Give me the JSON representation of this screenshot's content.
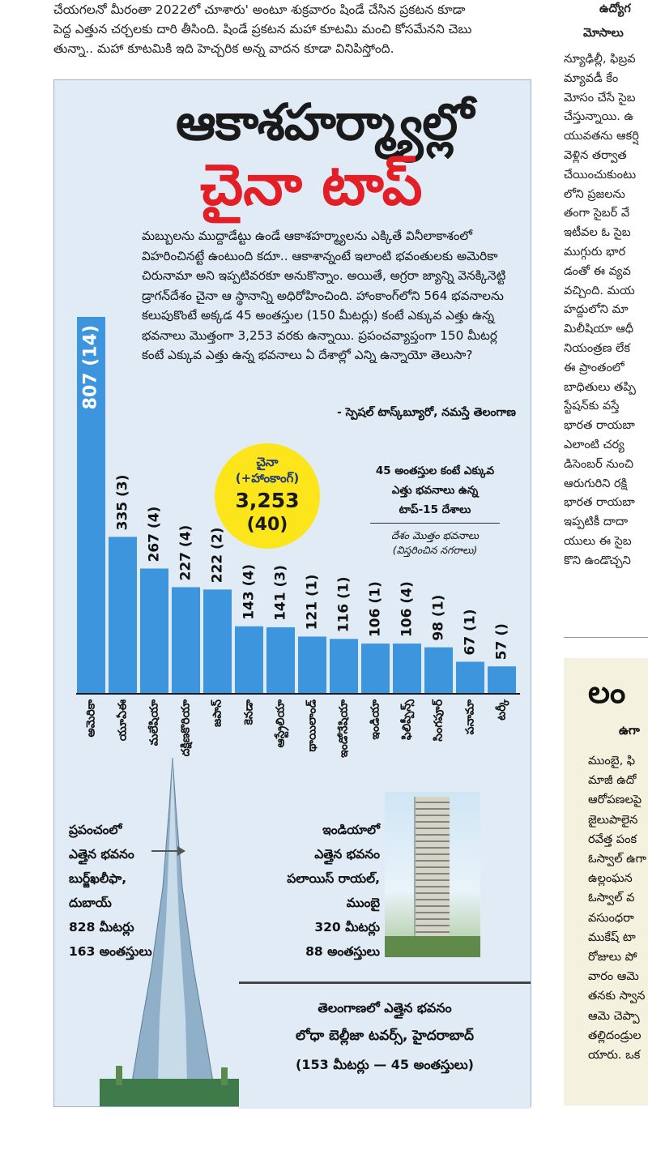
{
  "intro_lines": [
    "చేయగలనో మీరంతా 2022లో చూశారు' అంటూ శుక్రవారం షిండే చేసిన ప్రకటన కూడా",
    "పెద్ద ఎత్తున చర్చలకు దారి తీసింది. షిండే ప్రకటన మహా కూటమి మంచి కోసమేనని చెబు",
    "తున్నా.. మహా కూటమికి ఇది హెచ్చరిక అన్న వాదన కూడా వినిపిస్తోంది."
  ],
  "right_column": {
    "kicker": "ఉద్యోగ",
    "subhead": "మోసాలు",
    "lines": [
      "న్యూఢిల్లీ, ఫిబ్రవ",
      "మ్యావడీ కేం",
      "మోసం చేసే సైబ",
      "చేస్తున్నాయి. ఉ",
      "యువతను ఆకర్షి",
      "వెళ్లిన తర్వాత",
      "చేయించుకుంటు",
      "లోని ప్రజలను",
      "తంగా సైబర్ వే",
      "ఇటీవల ఓ సైబ",
      "ముగ్గురు భార",
      "డంతో ఈ వ్యవ",
      "వచ్చింది. మయ",
      "హద్దులోని మా",
      "మిలీషియా ఆధీ",
      "నియంత్రణ లేక",
      "ఈ ప్రాంతంలో",
      "బాధితులు తప్పి",
      "స్టేషన్‌కు వస్తే",
      "భారత రాయబా",
      "ఎలాంటి చర్య",
      "డిసెంబర్ నుంచి",
      "ఆరుగురిని రక్షి",
      "భారత రాయబా",
      "ఇప్పటికీ దాదా",
      "యులు ఈ సైబ",
      "కొని ఉండొచ్చని"
    ]
  },
  "box2": {
    "head": "లం",
    "subhead": "ఉగా",
    "lines": [
      "ముంబై, ఫి",
      "మాజీ ఉదో",
      "ఆరోపణలపై",
      "జైలుపాలైన",
      "రవేత్త పంక",
      "ఓస్వాల్ ఉగా",
      "ఉల్లంఘన",
      "ఓస్వాల్ వ",
      "వసుంధరా",
      "ముకేష్ టా",
      "రోజులు పో",
      "వారం ఆమె",
      "తనకు స్వాన",
      "ఆమె చెప్పా",
      "తల్లిదండ్రుల",
      "యారు. ఒక"
    ]
  },
  "infographic": {
    "title_line1": "ఆకాశహర్మ్యాల్లో",
    "title_line2": "చైనా టాప్",
    "lead": "మబ్బులను ముద్దాడేట్టు ఉండే ఆకాశహర్మ్యాలను ఎక్కితే వినీలాకాశంలో విహరించినట్టే ఉంటుంది కదూ.. ఆకాశాన్నంటే ఇలాంటి భవంతులకు అమెరికా చిరునామా అని ఇప్పటివరకూ అనుకొన్నాం. అయితే, అగ్రరా జ్యాన్ని వెనక్కినెట్టి డ్రాగన్‌దేశం చైనా ఆ స్థానాన్ని అధిరోహించింది. హాంకాంగ్‌లోని 564 భవనాలను కలుపుకొంటే అక్కడ 45 అంతస్తుల (150 మీటర్లు) కంటే ఎక్కువ ఎత్తు ఉన్న భవనాలు మొత్తంగా 3,253 వరకు ఉన్నాయి. ప్రపంచవ్యాప్తంగా 150 మీటర్ల కంటే ఎక్కువ ఎత్తు ఉన్న భవనాలు ఏ దేశాల్లో ఎన్ని ఉన్నాయో తెలుసా?",
    "byline": "- స్పెషల్ టాస్క్‌బ్యూరో, నమస్తే తెలంగాణ",
    "china_circle": {
      "line1": "చైనా",
      "line2": "(+హాంకాంగ్)",
      "count": "3,253",
      "cities": "(40)"
    },
    "legend": {
      "line1": "45 అంతస్తుల కంటే ఎక్కువ",
      "line2": "ఎత్తు భవనాలు ఉన్న",
      "line3": "టాప్-15 దేశాలు",
      "note1": "దేశం మొత్తం భవనాలు",
      "note2": "(విస్తరించిన నగరాలు)"
    },
    "world_tallest": {
      "l1": "ప్రపంచంలో",
      "l2": "ఎత్తైన భవనం",
      "l3": "బుర్జ్‌ఖలీఫా,",
      "l4": "దుబాయ్",
      "l5": "828 మీటర్లు",
      "l6": "163 అంతస్తులు"
    },
    "india_tallest": {
      "l1": "ఇండియాలో",
      "l2": "ఎత్తైన భవనం",
      "l3": "పలాయిస్ రాయల్,",
      "l4": "ముంబై",
      "l5": "320 మీటర్లు",
      "l6": "88 అంతస్తులు"
    },
    "telangana_tallest": {
      "l1": "తెలంగాణలో ఎత్తైన భవనం",
      "l2": "లోధా బెల్లీజా టవర్స్, హైదరాబాద్",
      "l3": "(153 మీటర్లు — 45 అంతస్తులు)"
    }
  },
  "chart_data": {
    "type": "bar",
    "categories": [
      "అమెరికా",
      "యూఏఈ",
      "మలేషియా",
      "దక్షిణకొరియా",
      "జపాన్",
      "కెనడా",
      "ఆస్ట్రేలియా",
      "థాయిలాండ్",
      "ఇండోనేషియా",
      "ఇండియా",
      "ఫిలిప్పీన్స్",
      "సింగపూర్",
      "పనామా",
      "టర్కీ"
    ],
    "values": [
      807,
      335,
      267,
      227,
      222,
      143,
      141,
      121,
      116,
      106,
      106,
      98,
      67,
      57
    ],
    "labels": [
      "807 (14)",
      "335 (3)",
      "267 (4)",
      "227 (4)",
      "222 (2)",
      "143 (4)",
      "141 (3)",
      "121 (1)",
      "116 (1)",
      "106 (1)",
      "106 (4)",
      "98 (1)",
      "67 (1)",
      "57 ()"
    ],
    "bar_color": "#3d95dd",
    "ylim": [
      0,
      807
    ]
  }
}
